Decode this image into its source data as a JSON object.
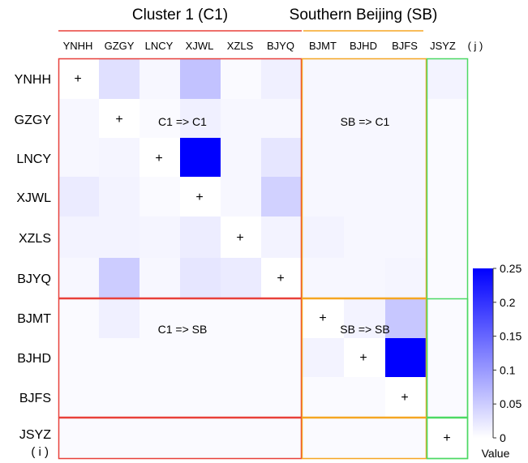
{
  "chart_data": {
    "type": "heatmap",
    "group_labels": [
      "Cluster 1 (C1)",
      "Southern Beijing (SB)"
    ],
    "col_labels": [
      "YNHH",
      "GZGY",
      "LNCY",
      "XJWL",
      "XZLS",
      "BJYQ",
      "BJMT",
      "BJHD",
      "BJFS",
      "JSYZ"
    ],
    "col_axis_suffix": "( j )",
    "row_labels": [
      "YNHH",
      "GZGY",
      "LNCY",
      "XJWL",
      "XZLS",
      "BJYQ",
      "BJMT",
      "BJHD",
      "BJFS",
      "JSYZ"
    ],
    "row_axis_suffix": "( i )",
    "values": [
      [
        0,
        0.03,
        0.008,
        0.06,
        0.005,
        0.015,
        0.008,
        0.008,
        0.008,
        0.012
      ],
      [
        0.008,
        0,
        0.005,
        0.015,
        0.008,
        0.008,
        0.008,
        0.008,
        0.008,
        0.005
      ],
      [
        0.008,
        0.01,
        0,
        0.25,
        0.008,
        0.025,
        0.008,
        0.008,
        0.008,
        0.005
      ],
      [
        0.02,
        0.012,
        0.005,
        0,
        0.008,
        0.045,
        0.008,
        0.008,
        0.008,
        0.005
      ],
      [
        0.012,
        0.012,
        0.01,
        0.018,
        0,
        0.012,
        0.012,
        0.008,
        0.008,
        0.005
      ],
      [
        0.008,
        0.05,
        0.008,
        0.025,
        0.02,
        0,
        0.008,
        0.008,
        0.01,
        0.005
      ],
      [
        0.005,
        0.015,
        0.005,
        0.005,
        0.005,
        0.005,
        0,
        0.012,
        0.055,
        0.005
      ],
      [
        0.005,
        0.005,
        0.005,
        0.005,
        0.005,
        0.005,
        0.012,
        0,
        0.25,
        0.005
      ],
      [
        0.005,
        0.005,
        0.005,
        0.005,
        0.005,
        0.005,
        0.005,
        0.005,
        0,
        0.005
      ],
      [
        0.005,
        0.005,
        0.005,
        0.005,
        0.005,
        0.005,
        0.005,
        0.005,
        0.005,
        0
      ]
    ],
    "diagonal_marker": "+",
    "blocks": [
      {
        "rows": [
          0,
          5
        ],
        "cols": [
          0,
          5
        ],
        "label": "C1 => C1",
        "color": "#e8403a"
      },
      {
        "rows": [
          0,
          5
        ],
        "cols": [
          6,
          8
        ],
        "label": "SB => C1",
        "color": "#f5a623"
      },
      {
        "rows": [
          0,
          9
        ],
        "cols": [
          9,
          9
        ],
        "label": "",
        "color": "#4cd964"
      },
      {
        "rows": [
          6,
          8
        ],
        "cols": [
          0,
          5
        ],
        "label": "C1 => SB",
        "color": "#e8403a"
      },
      {
        "rows": [
          6,
          8
        ],
        "cols": [
          6,
          8
        ],
        "label": "SB => SB",
        "color": "#f5a623"
      },
      {
        "rows": [
          6,
          8
        ],
        "cols": [
          9,
          9
        ],
        "label": "",
        "color": "#4cd964"
      },
      {
        "rows": [
          9,
          9
        ],
        "cols": [
          0,
          5
        ],
        "label": "",
        "color": "#e8403a"
      },
      {
        "rows": [
          9,
          9
        ],
        "cols": [
          6,
          8
        ],
        "label": "",
        "color": "#f5a623"
      },
      {
        "rows": [
          9,
          9
        ],
        "cols": [
          9,
          9
        ],
        "label": "",
        "color": "#4cd964"
      }
    ],
    "group_underline_colors": [
      "#e8403a",
      "#f5a623"
    ],
    "colorbar": {
      "min": 0,
      "max": 0.25,
      "ticks": [
        0.25,
        0.2,
        0.15,
        0.1,
        0.05,
        0
      ],
      "tick_labels": [
        "0.25",
        "0.2",
        "0.15",
        "0.1",
        "0.05",
        "0"
      ],
      "label": "Value",
      "color_low": "#ffffff",
      "color_high": "#0000ff"
    }
  }
}
